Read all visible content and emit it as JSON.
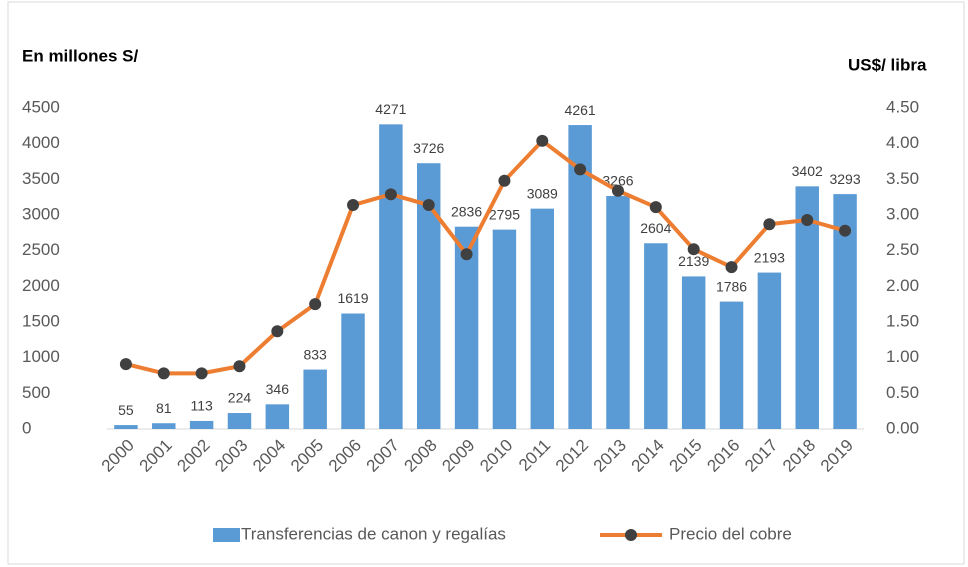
{
  "chart_data": {
    "type": "bar_line",
    "ylabel": "En millones S/",
    "y2label": "US$/ libra",
    "categories": [
      "2000",
      "2001",
      "2002",
      "2003",
      "2004",
      "2005",
      "2006",
      "2007",
      "2008",
      "2009",
      "2010",
      "2011",
      "2012",
      "2013",
      "2014",
      "2015",
      "2016",
      "2017",
      "2018",
      "2019"
    ],
    "series": [
      {
        "name": "Transferencias de canon y regalías",
        "type": "bar",
        "color": "#5b9bd5",
        "values": [
          55,
          81,
          113,
          224,
          346,
          833,
          1619,
          4271,
          3726,
          2836,
          2795,
          3089,
          4261,
          3266,
          2604,
          2139,
          1786,
          2193,
          3402,
          3293
        ]
      },
      {
        "name": "Precio del cobre",
        "type": "line",
        "axis": "y2",
        "color": "#ed7d31",
        "marker_color": "#404040",
        "values": [
          0.91,
          0.78,
          0.78,
          0.88,
          1.37,
          1.75,
          3.14,
          3.29,
          3.14,
          2.45,
          3.48,
          4.04,
          3.64,
          3.34,
          3.11,
          2.52,
          2.27,
          2.87,
          2.93,
          2.78
        ]
      }
    ],
    "ylim": [
      0,
      4500
    ],
    "yticks": [
      0,
      500,
      1000,
      1500,
      2000,
      2500,
      3000,
      3500,
      4000,
      4500
    ],
    "y2lim": [
      0,
      4.5
    ],
    "y2ticks": [
      {
        "value": 0,
        "label": "0.00"
      },
      {
        "value": 0.5,
        "label": "0.50"
      },
      {
        "value": 1,
        "label": "1.00"
      },
      {
        "value": 1.5,
        "label": "1.50"
      },
      {
        "value": 2,
        "label": "2.00"
      },
      {
        "value": 2.5,
        "label": "2.50"
      },
      {
        "value": 3,
        "label": "3.00"
      },
      {
        "value": 3.5,
        "label": "3.50"
      },
      {
        "value": 4,
        "label": "4.00"
      },
      {
        "value": 4.5,
        "label": "4.50"
      }
    ],
    "legend": "bottom"
  }
}
